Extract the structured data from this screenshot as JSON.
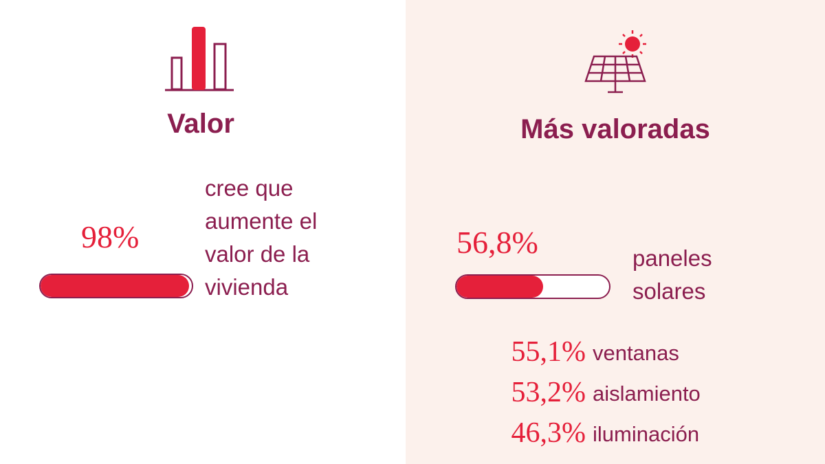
{
  "left": {
    "title": "Valor",
    "stat": {
      "value": 98,
      "label": "98%"
    },
    "description": [
      "cree que",
      "aumente el",
      "valor de la",
      "vivienda"
    ]
  },
  "right": {
    "title": "Más valoradas",
    "stat": {
      "value": 56.8,
      "label": "56,8%"
    },
    "description": [
      "paneles",
      "solares"
    ],
    "items": [
      {
        "value": {
          "value": 55.1,
          "label": "55,1%"
        },
        "name": "ventanas"
      },
      {
        "value": {
          "value": 53.2,
          "label": "53,2%"
        },
        "name": "aislamiento"
      },
      {
        "value": {
          "value": 46.3,
          "label": "46,3%"
        },
        "name": "iluminación"
      }
    ]
  }
}
